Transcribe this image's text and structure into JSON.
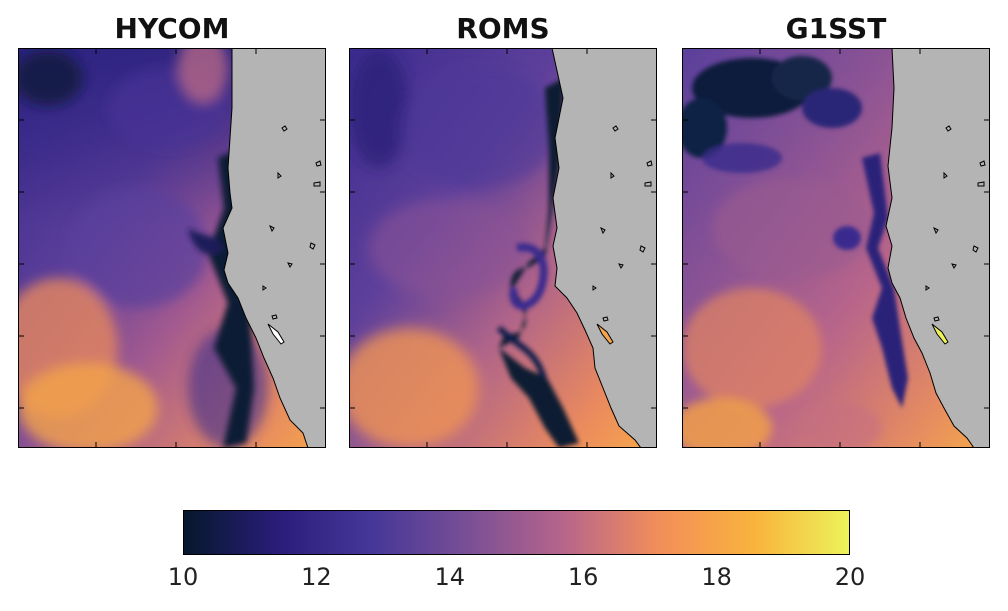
{
  "panels": [
    {
      "title": "HYCOM"
    },
    {
      "title": "ROMS"
    },
    {
      "title": "G1SST"
    }
  ],
  "colorbar": {
    "min": 10,
    "max": 20,
    "tick_values": [
      10,
      12,
      14,
      16,
      18,
      20
    ],
    "tick_labels": [
      "10",
      "12",
      "14",
      "16",
      "18",
      "20"
    ],
    "colormap": [
      "#06182c",
      "#2a1d7a",
      "#463898",
      "#7a4f96",
      "#b7658b",
      "#f28e5a",
      "#f9b33d",
      "#ecf35a"
    ]
  },
  "colors": {
    "land": "#b4b4b4",
    "coastline": "#000000",
    "frame": "#000000"
  }
}
